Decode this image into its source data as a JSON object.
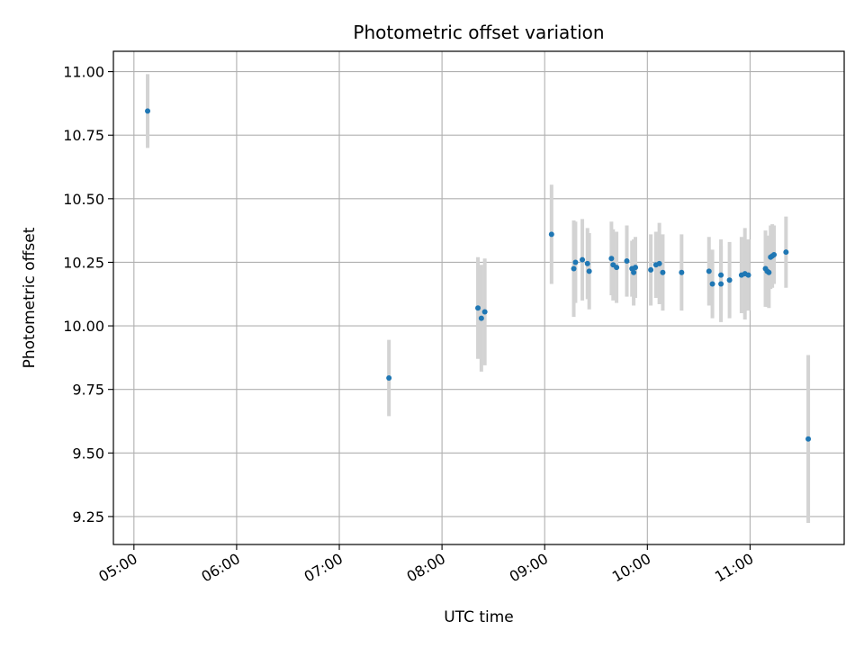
{
  "chart_data": {
    "type": "scatter",
    "title": "Photometric offset variation",
    "xlabel": "UTC time",
    "ylabel": "Photometric offset",
    "x_ticks": [
      "05:00",
      "06:00",
      "07:00",
      "08:00",
      "09:00",
      "10:00",
      "11:00"
    ],
    "y_ticks": [
      "9.25",
      "9.50",
      "9.75",
      "10.00",
      "10.25",
      "10.50",
      "10.75",
      "11.00"
    ],
    "xlim": [
      "04:48",
      "11:55"
    ],
    "ylim": [
      9.14,
      11.08
    ],
    "grid": true,
    "colors": {
      "points": "#1f77b4",
      "errorbars": "#d3d3d3",
      "grid": "#b0b0b0"
    },
    "series": [
      {
        "points": [
          {
            "x": "05:08",
            "y": 10.845,
            "err": 0.145
          },
          {
            "x": "07:29",
            "y": 9.795,
            "err": 0.15
          },
          {
            "x": "08:21",
            "y": 10.07,
            "err": 0.2
          },
          {
            "x": "08:23",
            "y": 10.03,
            "err": 0.21
          },
          {
            "x": "08:25",
            "y": 10.055,
            "err": 0.21
          },
          {
            "x": "09:04",
            "y": 10.36,
            "err": 0.195
          },
          {
            "x": "09:17",
            "y": 10.225,
            "err": 0.19
          },
          {
            "x": "09:18",
            "y": 10.25,
            "err": 0.16
          },
          {
            "x": "09:22",
            "y": 10.26,
            "err": 0.16
          },
          {
            "x": "09:25",
            "y": 10.245,
            "err": 0.14
          },
          {
            "x": "09:26",
            "y": 10.215,
            "err": 0.15
          },
          {
            "x": "09:39",
            "y": 10.265,
            "err": 0.145
          },
          {
            "x": "09:40",
            "y": 10.24,
            "err": 0.14
          },
          {
            "x": "09:42",
            "y": 10.23,
            "err": 0.14
          },
          {
            "x": "09:48",
            "y": 10.255,
            "err": 0.14
          },
          {
            "x": "09:51",
            "y": 10.225,
            "err": 0.11
          },
          {
            "x": "09:52",
            "y": 10.21,
            "err": 0.13
          },
          {
            "x": "09:53",
            "y": 10.23,
            "err": 0.12
          },
          {
            "x": "10:02",
            "y": 10.22,
            "err": 0.14
          },
          {
            "x": "10:05",
            "y": 10.24,
            "err": 0.13
          },
          {
            "x": "10:07",
            "y": 10.245,
            "err": 0.16
          },
          {
            "x": "10:09",
            "y": 10.21,
            "err": 0.15
          },
          {
            "x": "10:20",
            "y": 10.21,
            "err": 0.15
          },
          {
            "x": "10:36",
            "y": 10.215,
            "err": 0.135
          },
          {
            "x": "10:38",
            "y": 10.165,
            "err": 0.135
          },
          {
            "x": "10:43",
            "y": 10.2,
            "err": 0.14
          },
          {
            "x": "10:43",
            "y": 10.165,
            "err": 0.15
          },
          {
            "x": "10:48",
            "y": 10.18,
            "err": 0.15
          },
          {
            "x": "10:55",
            "y": 10.2,
            "err": 0.15
          },
          {
            "x": "10:57",
            "y": 10.205,
            "err": 0.18
          },
          {
            "x": "10:59",
            "y": 10.2,
            "err": 0.14
          },
          {
            "x": "11:09",
            "y": 10.225,
            "err": 0.15
          },
          {
            "x": "11:10",
            "y": 10.215,
            "err": 0.14
          },
          {
            "x": "11:11",
            "y": 10.21,
            "err": 0.14
          },
          {
            "x": "11:12",
            "y": 10.27,
            "err": 0.125
          },
          {
            "x": "11:13",
            "y": 10.275,
            "err": 0.125
          },
          {
            "x": "11:14",
            "y": 10.28,
            "err": 0.115
          },
          {
            "x": "11:21",
            "y": 10.29,
            "err": 0.14
          },
          {
            "x": "11:34",
            "y": 9.555,
            "err": 0.33
          }
        ]
      }
    ]
  }
}
